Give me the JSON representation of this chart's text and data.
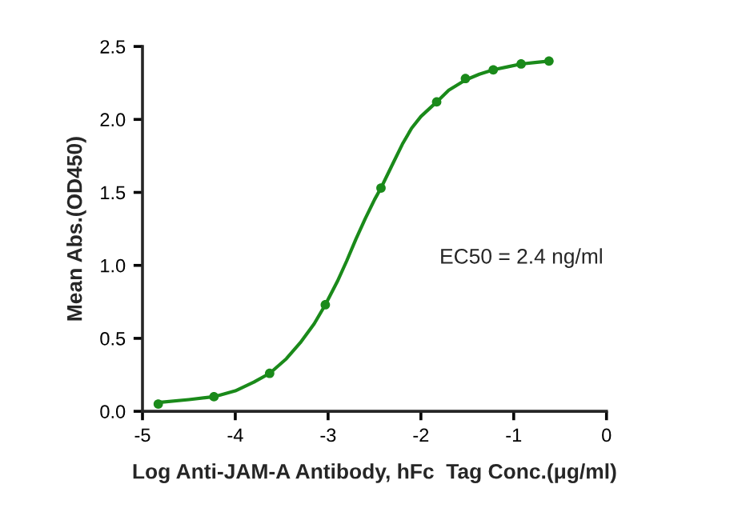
{
  "chart_data": {
    "type": "scatter",
    "xlabel": "Log Anti-JAM-A Antibody, hFc  Tag Conc.(μg/ml)",
    "ylabel": "Mean Abs.(OD450)",
    "annotations": [
      "EC50 = 2.4 ng/ml"
    ],
    "x": [
      -4.83,
      -4.23,
      -3.63,
      -3.03,
      -2.43,
      -1.83,
      -1.52,
      -1.22,
      -0.92,
      -0.62
    ],
    "series": [
      {
        "type": "line",
        "marker": "none",
        "color": "#1a8a1a",
        "x": [
          -4.83,
          -4.5,
          -4.23,
          -4.0,
          -3.8,
          -3.63,
          -3.45,
          -3.3,
          -3.15,
          -3.03,
          -2.9,
          -2.8,
          -2.7,
          -2.6,
          -2.5,
          -2.43,
          -2.3,
          -2.2,
          -2.1,
          -2.0,
          -1.83,
          -1.7,
          -1.52,
          -1.37,
          -1.22,
          -1.07,
          -0.92,
          -0.77,
          -0.62
        ],
        "values": [
          0.06,
          0.08,
          0.1,
          0.14,
          0.2,
          0.26,
          0.36,
          0.47,
          0.6,
          0.73,
          0.89,
          1.03,
          1.18,
          1.32,
          1.45,
          1.53,
          1.7,
          1.83,
          1.94,
          2.02,
          2.12,
          2.2,
          2.27,
          2.31,
          2.34,
          2.36,
          2.38,
          2.39,
          2.4
        ]
      },
      {
        "marker": "circle",
        "color": "#1a8a1a",
        "values": [
          0.05,
          0.1,
          0.26,
          0.73,
          1.53,
          2.12,
          2.28,
          2.34,
          2.38,
          2.4
        ]
      }
    ],
    "xlim": [
      -5,
      0
    ],
    "xticks": [
      -5,
      -4,
      -3,
      -2,
      -1,
      0
    ],
    "ylim": [
      0,
      2.5
    ],
    "yticks": [
      {
        "value": 0,
        "label": "0.0"
      },
      {
        "value": 0.5,
        "label": "0.5"
      },
      {
        "value": 1,
        "label": "1.0"
      },
      {
        "value": 1.5,
        "label": "1.5"
      },
      {
        "value": 2,
        "label": "2.0"
      },
      {
        "value": 2.5,
        "label": "2.5"
      }
    ],
    "line_style": "solid",
    "grid": false
  }
}
